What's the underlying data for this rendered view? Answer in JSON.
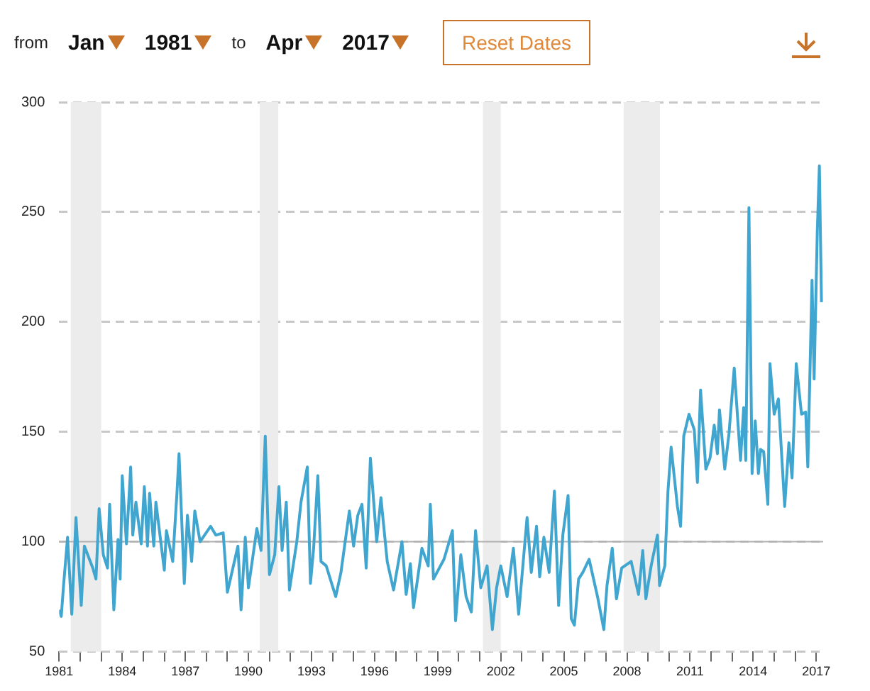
{
  "chart_data": {
    "type": "line",
    "annotations": [
      "from",
      "Jan",
      "1981",
      "to",
      "Apr",
      "2017",
      "Reset Dates"
    ],
    "series": [
      {
        "color": "#41a6cf",
        "x": [
          1981.0,
          1981.1,
          1981.2,
          1981.4,
          1981.6,
          1981.8,
          1982.05,
          1982.2,
          1982.6,
          1982.75,
          1982.9,
          1983.1,
          1983.3,
          1983.4,
          1983.6,
          1983.8,
          1983.9,
          1984.0,
          1984.2,
          1984.4,
          1984.5,
          1984.65,
          1984.9,
          1985.05,
          1985.2,
          1985.3,
          1985.5,
          1985.6,
          1986.0,
          1986.1,
          1986.4,
          1986.6,
          1986.7,
          1986.95,
          1987.1,
          1987.3,
          1987.45,
          1987.7,
          1988.2,
          1988.45,
          1988.8,
          1989.0,
          1989.5,
          1989.65,
          1989.85,
          1990.0,
          1990.4,
          1990.6,
          1990.8,
          1991.0,
          1991.25,
          1991.45,
          1991.6,
          1991.8,
          1991.95,
          1992.3,
          1992.5,
          1992.8,
          1992.95,
          1993.1,
          1993.3,
          1993.45,
          1993.7,
          1994.15,
          1994.4,
          1994.8,
          1995.0,
          1995.2,
          1995.4,
          1995.6,
          1995.8,
          1996.1,
          1996.3,
          1996.6,
          1996.9,
          1997.3,
          1997.5,
          1997.7,
          1997.85,
          1998.25,
          1998.55,
          1998.65,
          1998.8,
          1999.3,
          1999.7,
          1999.85,
          2000.1,
          2000.35,
          2000.6,
          2000.8,
          2001.05,
          2001.35,
          2001.6,
          2001.8,
          2002.0,
          2002.3,
          2002.6,
          2002.85,
          2003.05,
          2003.25,
          2003.45,
          2003.7,
          2003.85,
          2004.05,
          2004.3,
          2004.55,
          2004.75,
          2004.95,
          2005.2,
          2005.35,
          2005.5,
          2005.7,
          2005.9,
          2006.2,
          2006.6,
          2006.9,
          2007.05,
          2007.3,
          2007.5,
          2007.75,
          2008.2,
          2008.55,
          2008.75,
          2008.9,
          2009.15,
          2009.45,
          2009.55,
          2009.8,
          2009.95,
          2010.1,
          2010.4,
          2010.55,
          2010.7,
          2010.95,
          2011.2,
          2011.35,
          2011.5,
          2011.75,
          2011.95,
          2012.15,
          2012.3,
          2012.4,
          2012.65,
          2012.85,
          2013.1,
          2013.4,
          2013.55,
          2013.65,
          2013.8,
          2013.95,
          2014.1,
          2014.25,
          2014.35,
          2014.5,
          2014.7,
          2014.8,
          2015.0,
          2015.2,
          2015.5,
          2015.7,
          2015.85,
          2016.05,
          2016.3,
          2016.5,
          2016.6,
          2016.8,
          2016.9,
          2017.05,
          2017.15,
          2017.25
        ],
        "values": [
          69,
          66,
          79,
          102,
          67,
          111,
          71,
          98,
          88,
          83,
          115,
          94,
          88,
          117,
          69,
          101,
          83,
          130,
          99,
          134,
          103,
          118,
          99,
          125,
          98,
          122,
          98,
          118,
          87,
          105,
          91,
          122,
          140,
          81,
          112,
          91,
          114,
          100,
          107,
          103,
          104,
          77,
          98,
          69,
          102,
          79,
          106,
          96,
          148,
          85,
          94,
          125,
          96,
          118,
          78,
          100,
          118,
          134,
          81,
          97,
          130,
          91,
          89,
          75,
          86,
          114,
          98,
          112,
          117,
          88,
          138,
          100,
          120,
          91,
          78,
          100,
          76,
          90,
          70,
          97,
          89,
          117,
          83,
          92,
          105,
          64,
          94,
          75,
          68,
          105,
          79,
          89,
          60,
          79,
          89,
          75,
          97,
          67,
          89,
          111,
          86,
          107,
          84,
          102,
          86,
          123,
          71,
          103,
          121,
          65,
          62,
          83,
          86,
          92,
          75,
          60,
          80,
          97,
          74,
          88,
          91,
          76,
          96,
          74,
          89,
          103,
          80,
          89,
          123,
          143,
          116,
          107,
          148,
          158,
          151,
          127,
          169,
          133,
          138,
          153,
          140,
          160,
          133,
          149,
          179,
          137,
          161,
          137,
          252,
          131,
          155,
          131,
          142,
          141,
          117,
          181,
          158,
          165,
          116,
          145,
          129,
          181,
          158,
          159,
          134,
          219,
          174,
          241,
          271,
          209
        ]
      }
    ],
    "xlim": [
      1981,
      2017.33
    ],
    "xticks": [
      1981,
      {
        "value": 1982,
        "label": null
      },
      {
        "value": 1983,
        "label": null
      },
      1984,
      {
        "value": 1985,
        "label": null
      },
      {
        "value": 1986,
        "label": null
      },
      1987,
      {
        "value": 1988,
        "label": null
      },
      {
        "value": 1989,
        "label": null
      },
      1990,
      {
        "value": 1991,
        "label": null
      },
      {
        "value": 1992,
        "label": null
      },
      1993,
      {
        "value": 1994,
        "label": null
      },
      {
        "value": 1995,
        "label": null
      },
      1996,
      {
        "value": 1997,
        "label": null
      },
      {
        "value": 1998,
        "label": null
      },
      1999,
      {
        "value": 2000,
        "label": null
      },
      {
        "value": 2001,
        "label": null
      },
      2002,
      {
        "value": 2003,
        "label": null
      },
      {
        "value": 2004,
        "label": null
      },
      2005,
      {
        "value": 2006,
        "label": null
      },
      {
        "value": 2007,
        "label": null
      },
      2008,
      {
        "value": 2009,
        "label": null
      },
      {
        "value": 2010,
        "label": null
      },
      2011,
      {
        "value": 2012,
        "label": null
      },
      {
        "value": 2013,
        "label": null
      },
      2014,
      {
        "value": 2015,
        "label": null
      },
      {
        "value": 2016,
        "label": null
      },
      2017
    ],
    "ylim": [
      50,
      300
    ],
    "yticks": [
      50,
      100,
      150,
      200,
      250,
      300
    ],
    "grid": "y",
    "legend": false,
    "marker": "none",
    "line_style": "solid",
    "ref_lines": [
      {
        "axis": "y",
        "value": 100,
        "color": "#b0b0b0"
      }
    ],
    "bands": [
      {
        "axis": "x",
        "from": 1981.55,
        "to": 1983.0,
        "color": "#ececec"
      },
      {
        "axis": "x",
        "from": 1990.54,
        "to": 1991.42,
        "color": "#ececec"
      },
      {
        "axis": "x",
        "from": 2001.15,
        "to": 2002.0,
        "color": "#ececec"
      },
      {
        "axis": "x",
        "from": 2007.84,
        "to": 2009.57,
        "color": "#ececec"
      }
    ]
  }
}
